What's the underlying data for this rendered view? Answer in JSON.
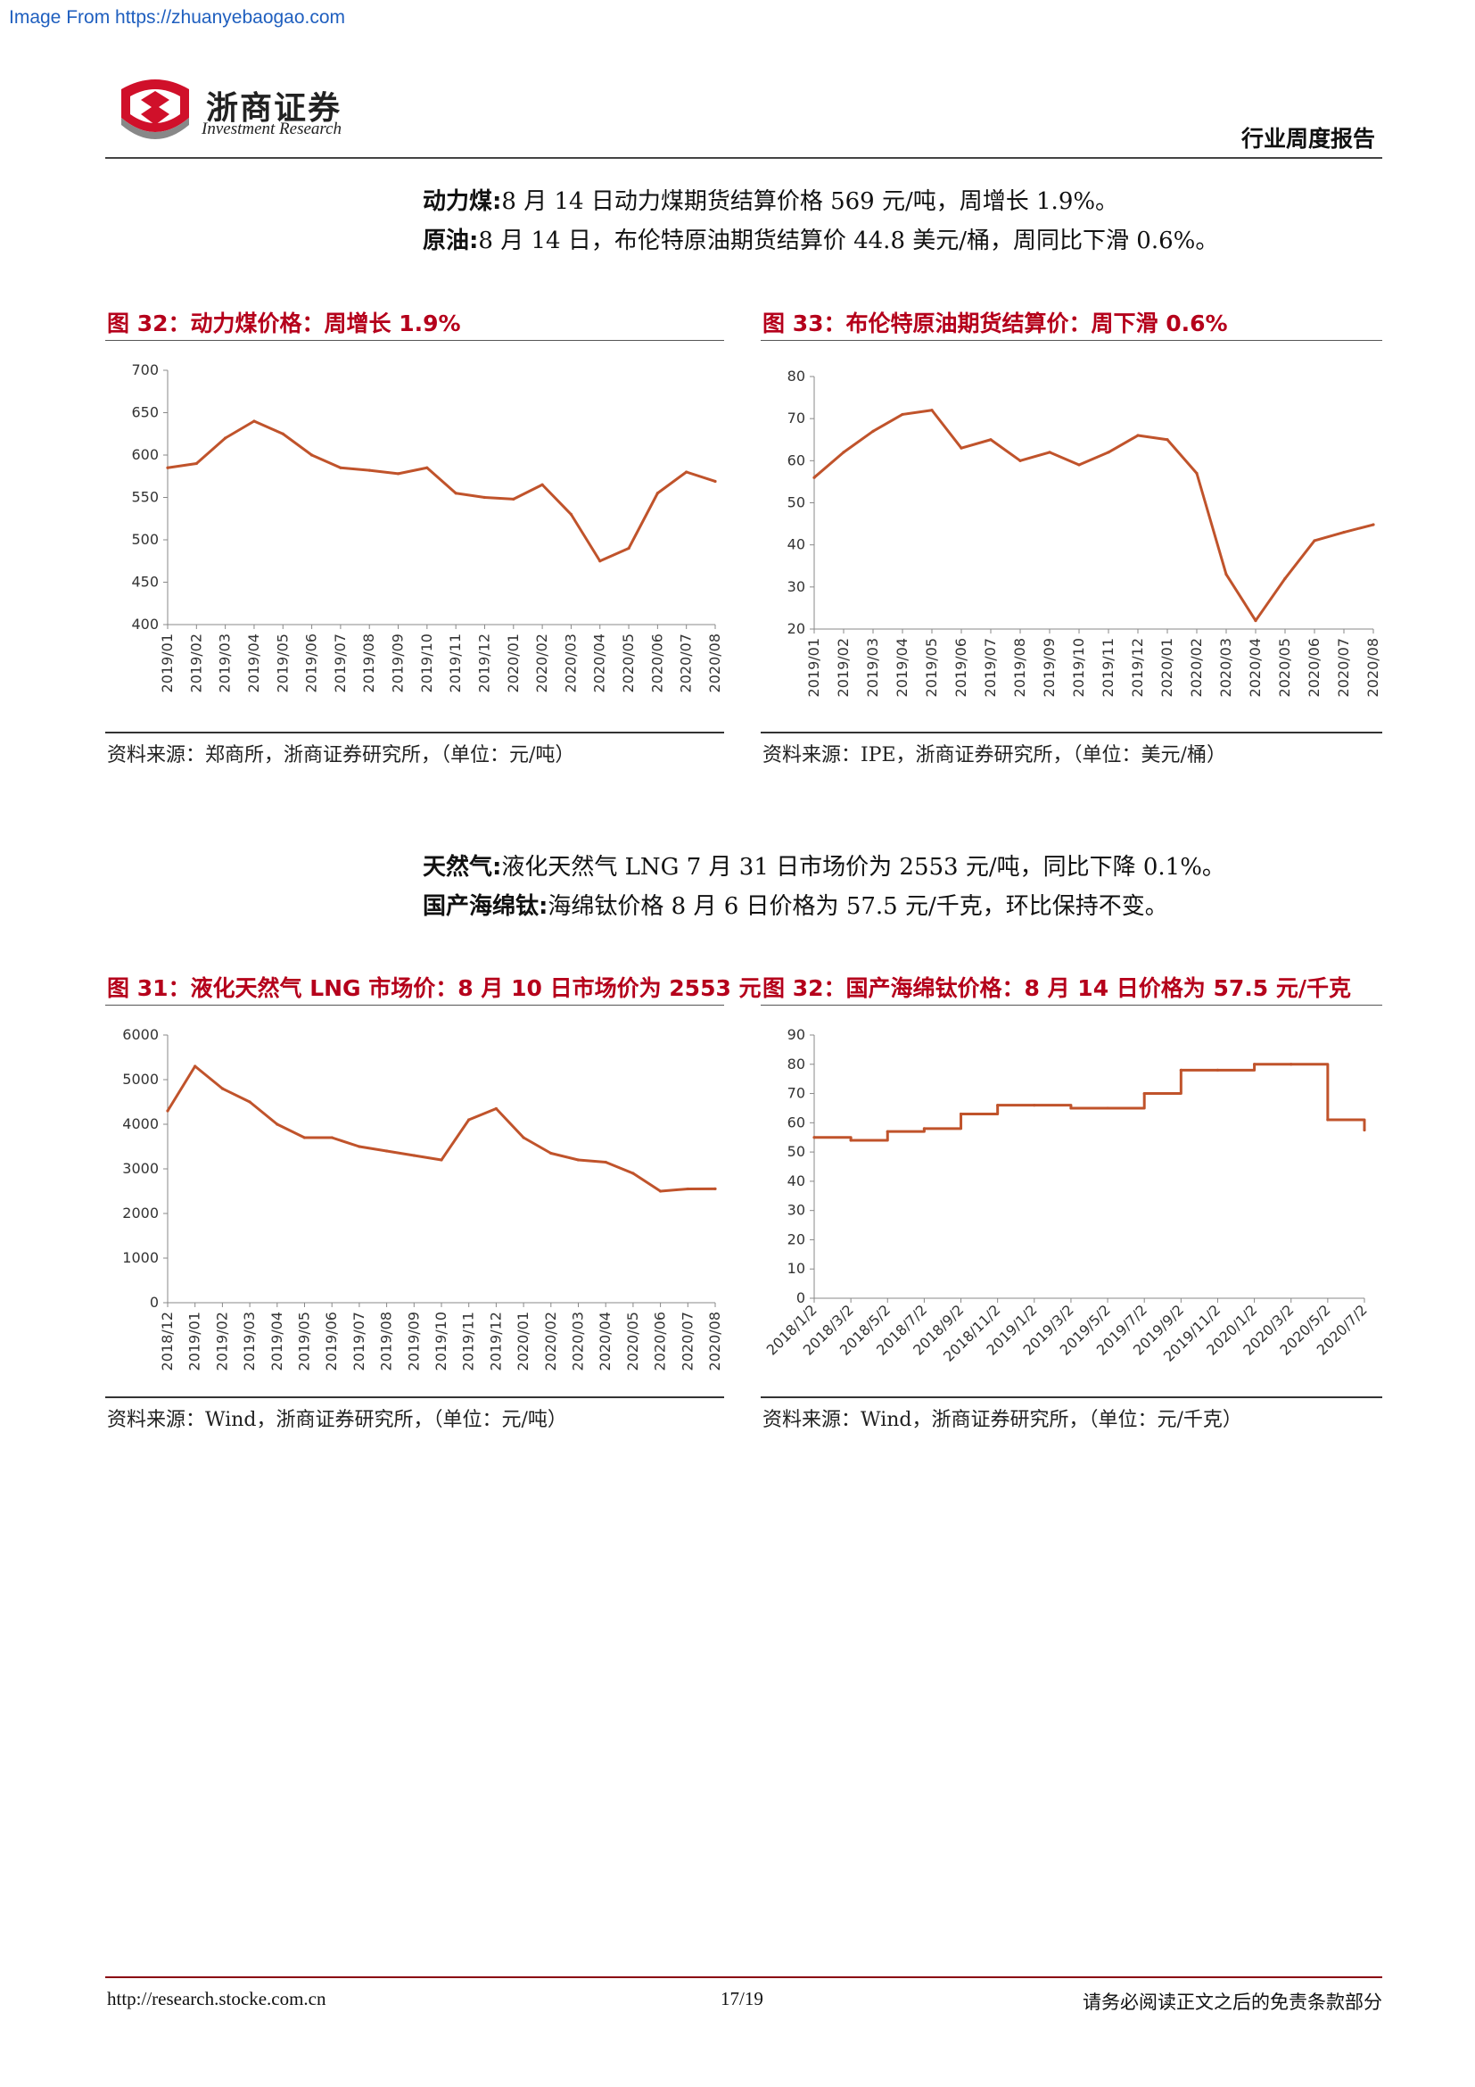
{
  "watermark": "Image From https://zhuanyebaogao.com",
  "header": {
    "logo_cn": "浙商证券",
    "logo_en": "Investment Research",
    "report_type": "行业周度报告"
  },
  "paragraphs": {
    "coal": {
      "label": "动力煤:",
      "text": "8 月 14 日动力煤期货结算价格 569 元/吨，周增长 1.9%。"
    },
    "oil": {
      "label": "原油:",
      "text": "8 月 14 日，布伦特原油期货结算价 44.8 美元/桶，周同比下滑 0.6%。"
    },
    "gas": {
      "label": "天然气:",
      "text": "液化天然气 LNG 7 月 31 日市场价为 2553 元/吨，同比下降 0.1%。"
    },
    "titanium": {
      "label": "国产海绵钛:",
      "text": "海绵钛价格 8 月 6 日价格为 57.5 元/千克，环比保持不变。"
    }
  },
  "figures": {
    "coal": {
      "title": "图 32：动力煤价格：周增长 1.9%",
      "source": "资料来源：郑商所，浙商证券研究所，（单位：元/吨）"
    },
    "oil": {
      "title": "图 33：布伦特原油期货结算价：周下滑 0.6%",
      "source": "资料来源：IPE，浙商证券研究所，（单位：美元/桶）"
    },
    "gas": {
      "title": "图 31：液化天然气 LNG 市场价：8 月 10 日市场价为 2553 元",
      "source": "资料来源：Wind，浙商证券研究所，（单位：元/吨）"
    },
    "titanium": {
      "title": "图 32：国产海绵钛价格：8 月 14 日价格为 57.5 元/千克",
      "source": "资料来源：Wind，浙商证券研究所，（单位：元/千克）"
    }
  },
  "footer": {
    "url": "http://research.stocke.com.cn",
    "page": "17/19",
    "disclaimer": "请务必阅读正文之后的免责条款部分"
  },
  "colors": {
    "line": "#c0532b",
    "title_red": "#b5001b"
  },
  "chart_data": [
    {
      "id": "coal",
      "type": "line",
      "x": [
        "2019/01",
        "2019/02",
        "2019/03",
        "2019/04",
        "2019/05",
        "2019/06",
        "2019/07",
        "2019/08",
        "2019/09",
        "2019/10",
        "2019/11",
        "2019/12",
        "2020/01",
        "2020/02",
        "2020/03",
        "2020/04",
        "2020/05",
        "2020/06",
        "2020/07",
        "2020/08"
      ],
      "series": [
        {
          "values": [
            585,
            590,
            620,
            640,
            625,
            600,
            585,
            582,
            578,
            585,
            555,
            550,
            548,
            565,
            530,
            475,
            490,
            555,
            580,
            569
          ]
        }
      ],
      "ylim": [
        400,
        700
      ],
      "yticks": [
        400,
        450,
        500,
        550,
        600,
        650,
        700
      ]
    },
    {
      "id": "oil",
      "type": "line",
      "x": [
        "2019/01",
        "2019/02",
        "2019/03",
        "2019/04",
        "2019/05",
        "2019/06",
        "2019/07",
        "2019/08",
        "2019/09",
        "2019/10",
        "2019/11",
        "2019/12",
        "2020/01",
        "2020/02",
        "2020/03",
        "2020/04",
        "2020/05",
        "2020/06",
        "2020/07",
        "2020/08"
      ],
      "series": [
        {
          "values": [
            56,
            62,
            67,
            71,
            72,
            63,
            65,
            60,
            62,
            59,
            62,
            66,
            65,
            57,
            33,
            22,
            32,
            41,
            43,
            44.8
          ]
        }
      ],
      "ylim": [
        20,
        80
      ],
      "yticks": [
        20,
        30,
        40,
        50,
        60,
        70,
        80
      ]
    },
    {
      "id": "gas",
      "type": "line",
      "x": [
        "2018/12",
        "2019/01",
        "2019/02",
        "2019/03",
        "2019/04",
        "2019/05",
        "2019/06",
        "2019/07",
        "2019/08",
        "2019/09",
        "2019/10",
        "2019/11",
        "2019/12",
        "2020/01",
        "2020/02",
        "2020/03",
        "2020/04",
        "2020/05",
        "2020/06",
        "2020/07",
        "2020/08"
      ],
      "series": [
        {
          "values": [
            4300,
            5300,
            4800,
            4500,
            4000,
            3700,
            3700,
            3500,
            3400,
            3300,
            3200,
            4100,
            4350,
            3700,
            3350,
            3200,
            3150,
            2900,
            2500,
            2550,
            2553
          ]
        }
      ],
      "ylim": [
        0,
        6000
      ],
      "yticks": [
        0,
        1000,
        2000,
        3000,
        4000,
        5000,
        6000
      ]
    },
    {
      "id": "titanium",
      "type": "line",
      "x": [
        "2018/1/2",
        "2018/3/2",
        "2018/5/2",
        "2018/7/2",
        "2018/9/2",
        "2018/11/2",
        "2019/1/2",
        "2019/3/2",
        "2019/5/2",
        "2019/7/2",
        "2019/9/2",
        "2019/11/2",
        "2020/1/2",
        "2020/3/2",
        "2020/5/2",
        "2020/7/2"
      ],
      "series": [
        {
          "values": [
            55,
            54,
            57,
            58,
            63,
            66,
            66,
            65,
            65,
            70,
            78,
            78,
            80,
            80,
            61,
            57.5
          ]
        }
      ],
      "ylim": [
        0,
        90
      ],
      "yticks": [
        0,
        10,
        20,
        30,
        40,
        50,
        60,
        70,
        80,
        90
      ]
    }
  ]
}
